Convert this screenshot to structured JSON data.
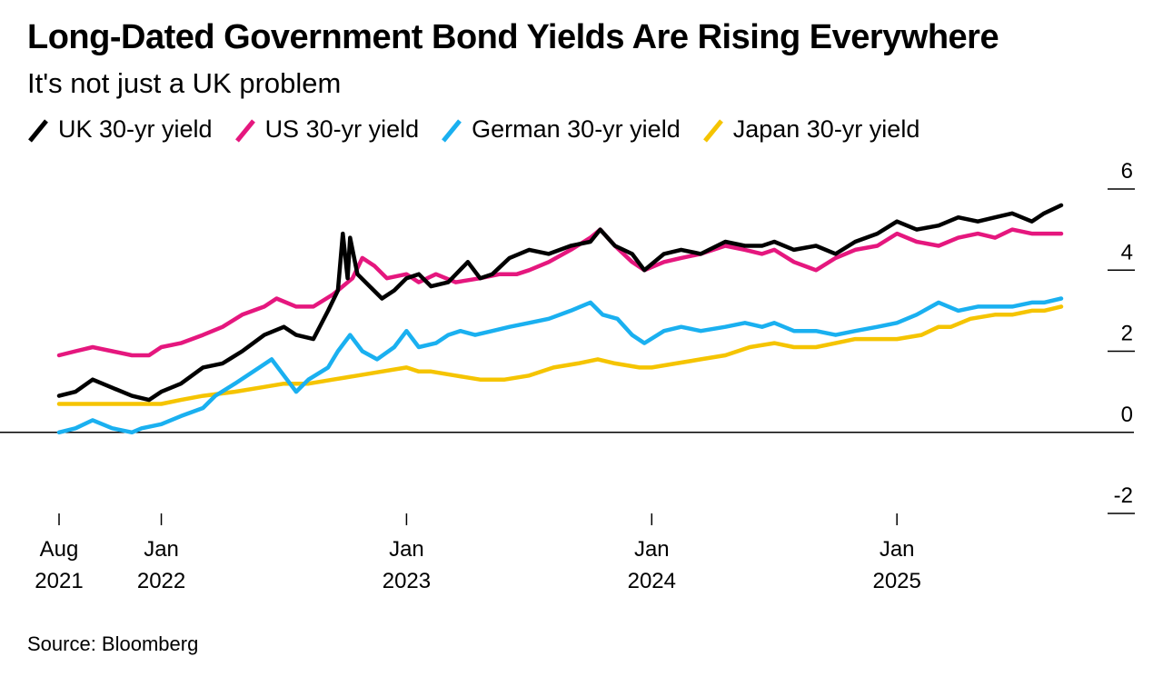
{
  "title": "Long-Dated Government Bond Yields Are Rising Everywhere",
  "subtitle": "It's not just a UK problem",
  "source": "Source: Bloomberg",
  "colors": {
    "uk": "#000000",
    "us": "#e5177e",
    "de": "#1ab0f0",
    "jp": "#f5c400"
  },
  "legend": [
    {
      "label": "UK 30-yr yield",
      "color": "#000000"
    },
    {
      "label": "US 30-yr yield",
      "color": "#e5177e"
    },
    {
      "label": "German 30-yr yield",
      "color": "#1ab0f0"
    },
    {
      "label": "Japan 30-yr yield",
      "color": "#f5c400"
    }
  ],
  "chart_data": {
    "type": "line",
    "title": "Long-Dated Government Bond Yields Are Rising Everywhere",
    "subtitle": "It's not just a UK problem",
    "xlabel": "",
    "ylabel": "",
    "xlim": [
      2021.583,
      2025.67
    ],
    "ylim": [
      -2,
      6
    ],
    "y_ticks": [
      {
        "value": 6,
        "label": "6"
      },
      {
        "value": 4,
        "label": "4"
      },
      {
        "value": 2,
        "label": "2"
      },
      {
        "value": 0,
        "label": "0"
      },
      {
        "value": -2,
        "label": "-2"
      }
    ],
    "x_ticks": [
      {
        "value": 2021.583,
        "line1": "Aug",
        "line2": "2021"
      },
      {
        "value": 2022.0,
        "line1": "Jan",
        "line2": "2022"
      },
      {
        "value": 2023.0,
        "line1": "Jan",
        "line2": "2023"
      },
      {
        "value": 2024.0,
        "line1": "Jan",
        "line2": "2024"
      },
      {
        "value": 2025.0,
        "line1": "Jan",
        "line2": "2025"
      }
    ],
    "series": [
      {
        "name": "UK 30-yr yield",
        "color": "#000000",
        "points": [
          [
            2021.583,
            0.9
          ],
          [
            2021.65,
            1.0
          ],
          [
            2021.72,
            1.3
          ],
          [
            2021.8,
            1.1
          ],
          [
            2021.88,
            0.9
          ],
          [
            2021.95,
            0.8
          ],
          [
            2022.0,
            1.0
          ],
          [
            2022.08,
            1.2
          ],
          [
            2022.17,
            1.6
          ],
          [
            2022.25,
            1.7
          ],
          [
            2022.33,
            2.0
          ],
          [
            2022.42,
            2.4
          ],
          [
            2022.5,
            2.6
          ],
          [
            2022.55,
            2.4
          ],
          [
            2022.62,
            2.3
          ],
          [
            2022.68,
            3.0
          ],
          [
            2022.72,
            3.5
          ],
          [
            2022.74,
            4.9
          ],
          [
            2022.76,
            3.8
          ],
          [
            2022.77,
            4.8
          ],
          [
            2022.8,
            3.9
          ],
          [
            2022.85,
            3.6
          ],
          [
            2022.9,
            3.3
          ],
          [
            2022.95,
            3.5
          ],
          [
            2023.0,
            3.8
          ],
          [
            2023.05,
            3.9
          ],
          [
            2023.1,
            3.6
          ],
          [
            2023.17,
            3.7
          ],
          [
            2023.25,
            4.2
          ],
          [
            2023.3,
            3.8
          ],
          [
            2023.35,
            3.9
          ],
          [
            2023.42,
            4.3
          ],
          [
            2023.5,
            4.5
          ],
          [
            2023.58,
            4.4
          ],
          [
            2023.67,
            4.6
          ],
          [
            2023.75,
            4.7
          ],
          [
            2023.79,
            5.0
          ],
          [
            2023.85,
            4.6
          ],
          [
            2023.92,
            4.4
          ],
          [
            2023.97,
            4.0
          ],
          [
            2024.05,
            4.4
          ],
          [
            2024.12,
            4.5
          ],
          [
            2024.2,
            4.4
          ],
          [
            2024.3,
            4.7
          ],
          [
            2024.38,
            4.6
          ],
          [
            2024.45,
            4.6
          ],
          [
            2024.5,
            4.7
          ],
          [
            2024.58,
            4.5
          ],
          [
            2024.67,
            4.6
          ],
          [
            2024.75,
            4.4
          ],
          [
            2024.83,
            4.7
          ],
          [
            2024.92,
            4.9
          ],
          [
            2025.0,
            5.2
          ],
          [
            2025.08,
            5.0
          ],
          [
            2025.17,
            5.1
          ],
          [
            2025.25,
            5.3
          ],
          [
            2025.33,
            5.2
          ],
          [
            2025.4,
            5.3
          ],
          [
            2025.47,
            5.4
          ],
          [
            2025.55,
            5.2
          ],
          [
            2025.6,
            5.4
          ],
          [
            2025.67,
            5.6
          ]
        ]
      },
      {
        "name": "US 30-yr yield",
        "color": "#e5177e",
        "points": [
          [
            2021.583,
            1.9
          ],
          [
            2021.65,
            2.0
          ],
          [
            2021.72,
            2.1
          ],
          [
            2021.8,
            2.0
          ],
          [
            2021.88,
            1.9
          ],
          [
            2021.95,
            1.9
          ],
          [
            2022.0,
            2.1
          ],
          [
            2022.08,
            2.2
          ],
          [
            2022.17,
            2.4
          ],
          [
            2022.25,
            2.6
          ],
          [
            2022.33,
            2.9
          ],
          [
            2022.42,
            3.1
          ],
          [
            2022.47,
            3.3
          ],
          [
            2022.55,
            3.1
          ],
          [
            2022.62,
            3.1
          ],
          [
            2022.7,
            3.4
          ],
          [
            2022.78,
            3.8
          ],
          [
            2022.82,
            4.3
          ],
          [
            2022.87,
            4.1
          ],
          [
            2022.92,
            3.8
          ],
          [
            2023.0,
            3.9
          ],
          [
            2023.05,
            3.7
          ],
          [
            2023.12,
            3.9
          ],
          [
            2023.2,
            3.7
          ],
          [
            2023.3,
            3.8
          ],
          [
            2023.38,
            3.9
          ],
          [
            2023.45,
            3.9
          ],
          [
            2023.5,
            4.0
          ],
          [
            2023.58,
            4.2
          ],
          [
            2023.67,
            4.5
          ],
          [
            2023.75,
            4.8
          ],
          [
            2023.79,
            5.0
          ],
          [
            2023.85,
            4.6
          ],
          [
            2023.92,
            4.2
          ],
          [
            2023.97,
            4.0
          ],
          [
            2024.05,
            4.2
          ],
          [
            2024.12,
            4.3
          ],
          [
            2024.2,
            4.4
          ],
          [
            2024.3,
            4.6
          ],
          [
            2024.38,
            4.5
          ],
          [
            2024.45,
            4.4
          ],
          [
            2024.5,
            4.5
          ],
          [
            2024.58,
            4.2
          ],
          [
            2024.67,
            4.0
          ],
          [
            2024.75,
            4.3
          ],
          [
            2024.83,
            4.5
          ],
          [
            2024.92,
            4.6
          ],
          [
            2025.0,
            4.9
          ],
          [
            2025.08,
            4.7
          ],
          [
            2025.17,
            4.6
          ],
          [
            2025.25,
            4.8
          ],
          [
            2025.33,
            4.9
          ],
          [
            2025.4,
            4.8
          ],
          [
            2025.47,
            5.0
          ],
          [
            2025.55,
            4.9
          ],
          [
            2025.6,
            4.9
          ],
          [
            2025.67,
            4.9
          ]
        ]
      },
      {
        "name": "German 30-yr yield",
        "color": "#1ab0f0",
        "points": [
          [
            2021.583,
            0.0
          ],
          [
            2021.65,
            0.1
          ],
          [
            2021.72,
            0.3
          ],
          [
            2021.8,
            0.1
          ],
          [
            2021.88,
            0.0
          ],
          [
            2021.92,
            0.1
          ],
          [
            2022.0,
            0.2
          ],
          [
            2022.08,
            0.4
          ],
          [
            2022.17,
            0.6
          ],
          [
            2022.22,
            0.9
          ],
          [
            2022.3,
            1.2
          ],
          [
            2022.4,
            1.6
          ],
          [
            2022.45,
            1.8
          ],
          [
            2022.5,
            1.4
          ],
          [
            2022.55,
            1.0
          ],
          [
            2022.6,
            1.3
          ],
          [
            2022.68,
            1.6
          ],
          [
            2022.72,
            2.0
          ],
          [
            2022.77,
            2.4
          ],
          [
            2022.82,
            2.0
          ],
          [
            2022.88,
            1.8
          ],
          [
            2022.95,
            2.1
          ],
          [
            2023.0,
            2.5
          ],
          [
            2023.05,
            2.1
          ],
          [
            2023.12,
            2.2
          ],
          [
            2023.17,
            2.4
          ],
          [
            2023.22,
            2.5
          ],
          [
            2023.28,
            2.4
          ],
          [
            2023.35,
            2.5
          ],
          [
            2023.42,
            2.6
          ],
          [
            2023.5,
            2.7
          ],
          [
            2023.58,
            2.8
          ],
          [
            2023.67,
            3.0
          ],
          [
            2023.75,
            3.2
          ],
          [
            2023.8,
            2.9
          ],
          [
            2023.86,
            2.8
          ],
          [
            2023.92,
            2.4
          ],
          [
            2023.97,
            2.2
          ],
          [
            2024.05,
            2.5
          ],
          [
            2024.12,
            2.6
          ],
          [
            2024.2,
            2.5
          ],
          [
            2024.3,
            2.6
          ],
          [
            2024.38,
            2.7
          ],
          [
            2024.45,
            2.6
          ],
          [
            2024.5,
            2.7
          ],
          [
            2024.58,
            2.5
          ],
          [
            2024.67,
            2.5
          ],
          [
            2024.75,
            2.4
          ],
          [
            2024.83,
            2.5
          ],
          [
            2024.92,
            2.6
          ],
          [
            2025.0,
            2.7
          ],
          [
            2025.08,
            2.9
          ],
          [
            2025.17,
            3.2
          ],
          [
            2025.25,
            3.0
          ],
          [
            2025.33,
            3.1
          ],
          [
            2025.4,
            3.1
          ],
          [
            2025.47,
            3.1
          ],
          [
            2025.55,
            3.2
          ],
          [
            2025.6,
            3.2
          ],
          [
            2025.67,
            3.3
          ]
        ]
      },
      {
        "name": "Japan 30-yr yield",
        "color": "#f5c400",
        "points": [
          [
            2021.583,
            0.7
          ],
          [
            2021.7,
            0.7
          ],
          [
            2021.8,
            0.7
          ],
          [
            2021.9,
            0.7
          ],
          [
            2022.0,
            0.7
          ],
          [
            2022.08,
            0.8
          ],
          [
            2022.17,
            0.9
          ],
          [
            2022.3,
            1.0
          ],
          [
            2022.4,
            1.1
          ],
          [
            2022.5,
            1.2
          ],
          [
            2022.6,
            1.2
          ],
          [
            2022.7,
            1.3
          ],
          [
            2022.8,
            1.4
          ],
          [
            2022.9,
            1.5
          ],
          [
            2023.0,
            1.6
          ],
          [
            2023.05,
            1.5
          ],
          [
            2023.1,
            1.5
          ],
          [
            2023.2,
            1.4
          ],
          [
            2023.3,
            1.3
          ],
          [
            2023.4,
            1.3
          ],
          [
            2023.5,
            1.4
          ],
          [
            2023.6,
            1.6
          ],
          [
            2023.7,
            1.7
          ],
          [
            2023.78,
            1.8
          ],
          [
            2023.85,
            1.7
          ],
          [
            2023.95,
            1.6
          ],
          [
            2024.0,
            1.6
          ],
          [
            2024.1,
            1.7
          ],
          [
            2024.2,
            1.8
          ],
          [
            2024.3,
            1.9
          ],
          [
            2024.4,
            2.1
          ],
          [
            2024.5,
            2.2
          ],
          [
            2024.58,
            2.1
          ],
          [
            2024.67,
            2.1
          ],
          [
            2024.75,
            2.2
          ],
          [
            2024.83,
            2.3
          ],
          [
            2024.92,
            2.3
          ],
          [
            2025.0,
            2.3
          ],
          [
            2025.1,
            2.4
          ],
          [
            2025.17,
            2.6
          ],
          [
            2025.22,
            2.6
          ],
          [
            2025.3,
            2.8
          ],
          [
            2025.4,
            2.9
          ],
          [
            2025.47,
            2.9
          ],
          [
            2025.55,
            3.0
          ],
          [
            2025.6,
            3.0
          ],
          [
            2025.67,
            3.1
          ]
        ]
      }
    ]
  }
}
